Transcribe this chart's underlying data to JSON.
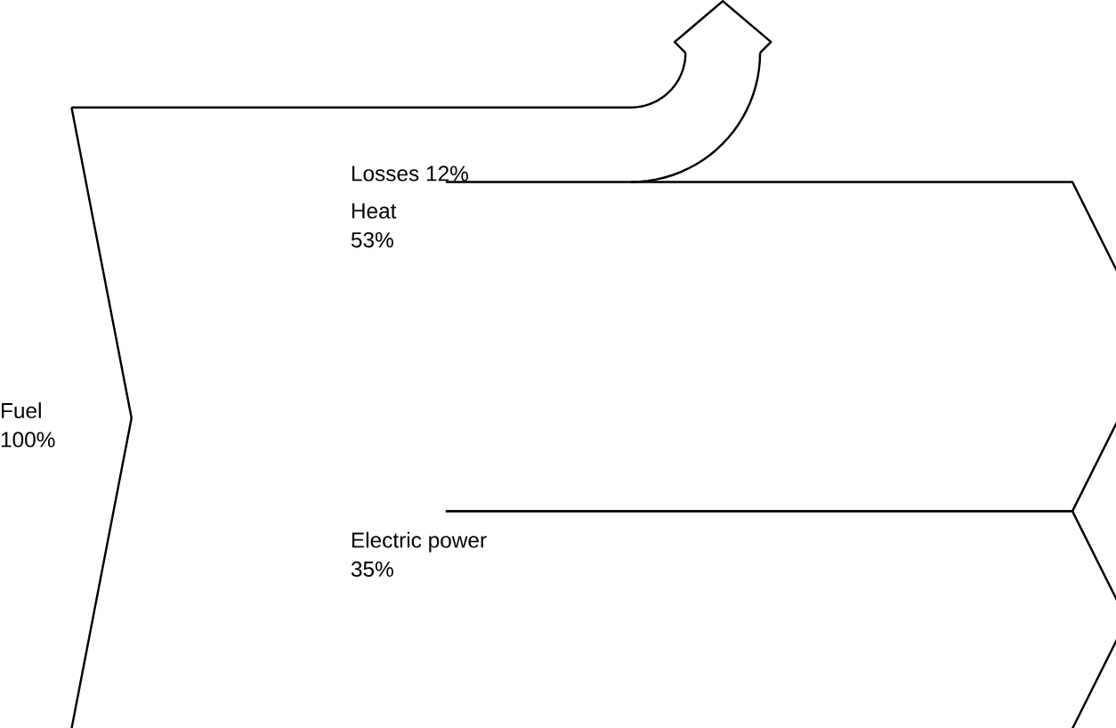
{
  "chart_data": {
    "type": "other",
    "categories": [
      "Fuel",
      "Losses",
      "Heat",
      "Electric power"
    ],
    "values": [
      100,
      12,
      53,
      35
    ],
    "value_labels": [
      "100%",
      "12%",
      "53%",
      "35%"
    ]
  }
}
